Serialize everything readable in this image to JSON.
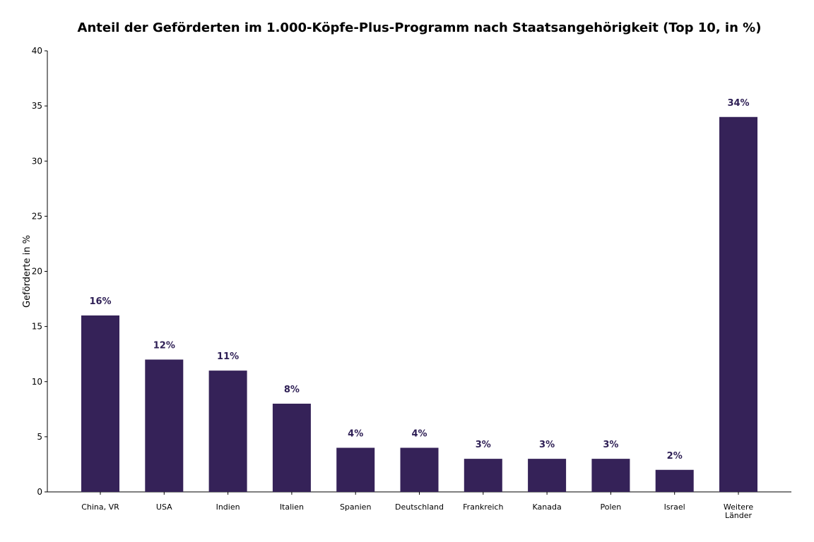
{
  "chart_data": {
    "type": "bar",
    "title": "Anteil der Geförderten im 1.000-Köpfe-Plus-Programm nach Staatsangehörigkeit (Top 10, in %)",
    "xlabel": "",
    "ylabel": "Geförderte in %",
    "ylim": [
      0,
      40
    ],
    "yticks": [
      0,
      5,
      10,
      15,
      20,
      25,
      30,
      35,
      40
    ],
    "categories": [
      [
        "China, VR"
      ],
      [
        "USA"
      ],
      [
        "Indien"
      ],
      [
        "Italien"
      ],
      [
        "Spanien"
      ],
      [
        "Deutschland"
      ],
      [
        "Frankreich"
      ],
      [
        "Kanada"
      ],
      [
        "Polen"
      ],
      [
        "Israel"
      ],
      [
        "Weitere",
        "Länder"
      ]
    ],
    "values": [
      16,
      12,
      11,
      8,
      4,
      4,
      3,
      3,
      3,
      2,
      34
    ],
    "data_labels": [
      "16%",
      "12%",
      "11%",
      "8%",
      "4%",
      "4%",
      "3%",
      "3%",
      "3%",
      "2%",
      "34%"
    ],
    "bar_color": "#352258",
    "label_color": "#2e1f55",
    "grid": false
  }
}
